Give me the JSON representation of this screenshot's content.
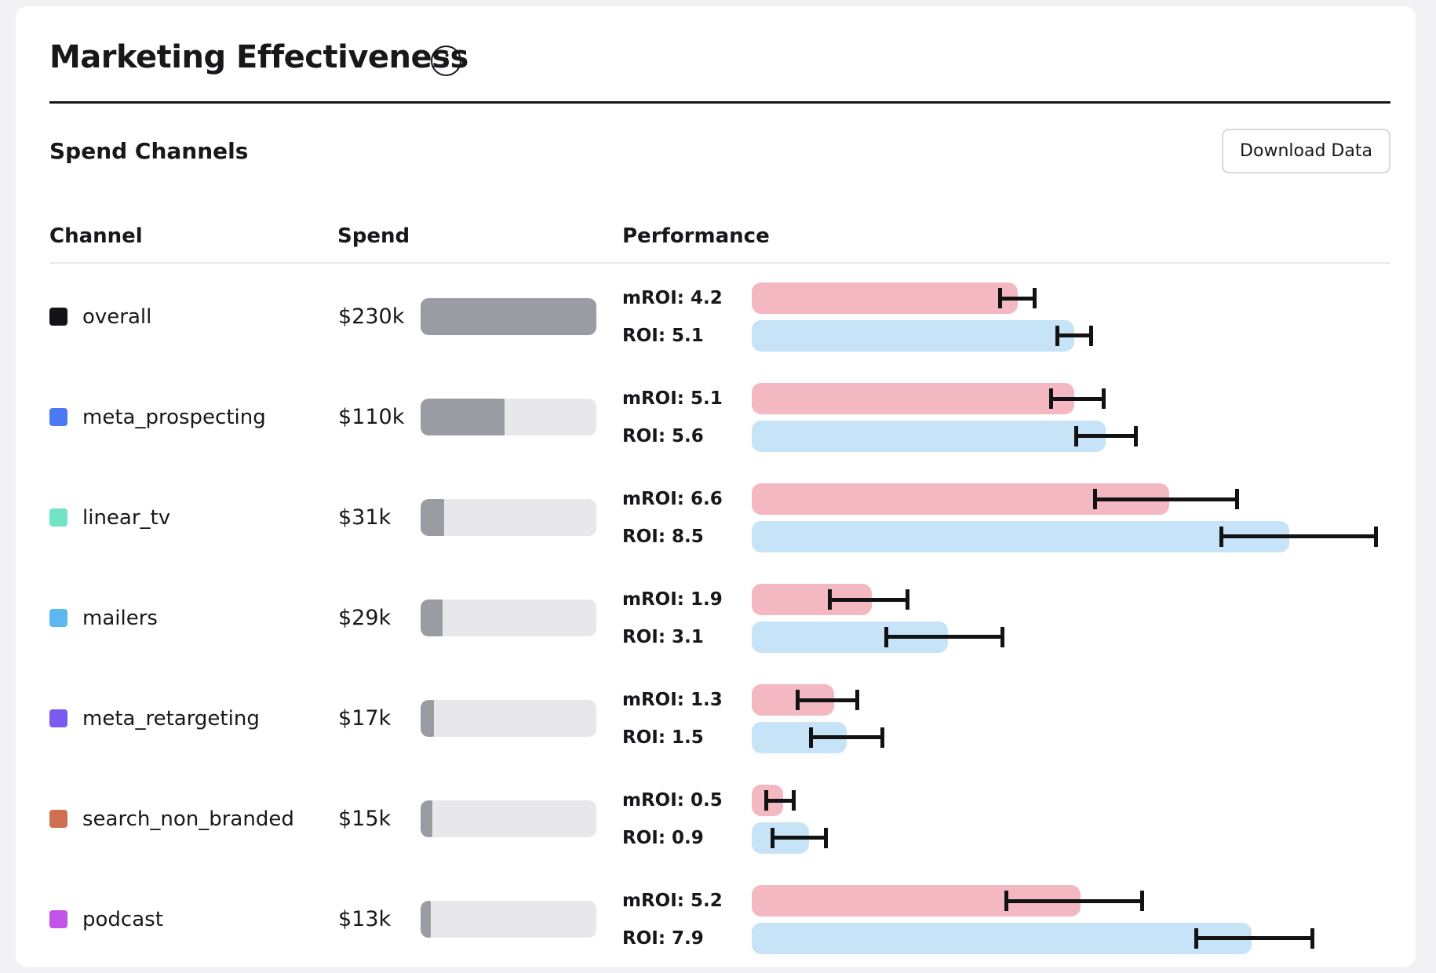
{
  "page": {
    "title": "Marketing Effectiveness"
  },
  "section": {
    "heading": "Spend Channels",
    "download_label": "Download Data",
    "info_glyph": "i"
  },
  "columns": {
    "channel": "Channel",
    "spend": "Spend",
    "performance": "Performance"
  },
  "colors": {
    "mroi_bar": "#f3b8c2",
    "roi_bar": "#c7e3f7",
    "spend_fill": "#9b9ba3",
    "spend_track": "#e8e8ea",
    "error_bar": "#121212",
    "card_bg": "#ffffff",
    "page_bg": "#f2f2f4"
  },
  "chart_data": {
    "type": "bar",
    "unit": "ROI multiple",
    "max_spend_k": 230,
    "channels": [
      {
        "name": "overall",
        "swatch": "#141418",
        "spend_label": "$230k",
        "spend_k": 230,
        "mroi": {
          "label": "mROI: 4.2",
          "value": 4.2,
          "low": 3.9,
          "high": 4.5
        },
        "roi": {
          "label": "ROI: 5.1",
          "value": 5.1,
          "low": 4.8,
          "high": 5.4
        }
      },
      {
        "name": "meta_prospecting",
        "swatch": "#4a79f2",
        "spend_label": "$110k",
        "spend_k": 110,
        "mroi": {
          "label": "mROI: 5.1",
          "value": 5.1,
          "low": 4.7,
          "high": 5.6
        },
        "roi": {
          "label": "ROI: 5.6",
          "value": 5.6,
          "low": 5.1,
          "high": 6.1
        }
      },
      {
        "name": "linear_tv",
        "swatch": "#72e3c4",
        "spend_label": "$31k",
        "spend_k": 31,
        "mroi": {
          "label": "mROI: 6.6",
          "value": 6.6,
          "low": 5.4,
          "high": 7.7
        },
        "roi": {
          "label": "ROI: 8.5",
          "value": 8.5,
          "low": 7.4,
          "high": 9.9
        }
      },
      {
        "name": "mailers",
        "swatch": "#5cb8ef",
        "spend_label": "$29k",
        "spend_k": 29,
        "mroi": {
          "label": "mROI: 1.9",
          "value": 1.9,
          "low": 1.2,
          "high": 2.5
        },
        "roi": {
          "label": "ROI: 3.1",
          "value": 3.1,
          "low": 2.1,
          "high": 4.0
        }
      },
      {
        "name": "meta_retargeting",
        "swatch": "#7b5bef",
        "spend_label": "$17k",
        "spend_k": 17,
        "mroi": {
          "label": "mROI: 1.3",
          "value": 1.3,
          "low": 0.7,
          "high": 1.7
        },
        "roi": {
          "label": "ROI: 1.5",
          "value": 1.5,
          "low": 0.9,
          "high": 2.1
        }
      },
      {
        "name": "search_non_branded",
        "swatch": "#cf7053",
        "spend_label": "$15k",
        "spend_k": 15,
        "mroi": {
          "label": "mROI: 0.5",
          "value": 0.5,
          "low": 0.2,
          "high": 0.7
        },
        "roi": {
          "label": "ROI: 0.9",
          "value": 0.9,
          "low": 0.3,
          "high": 1.2
        }
      },
      {
        "name": "podcast",
        "swatch": "#c253e8",
        "spend_label": "$13k",
        "spend_k": 13,
        "mroi": {
          "label": "mROI: 5.2",
          "value": 5.2,
          "low": 4.0,
          "high": 6.2
        },
        "roi": {
          "label": "ROI: 7.9",
          "value": 7.9,
          "low": 7.0,
          "high": 8.9
        }
      }
    ]
  }
}
